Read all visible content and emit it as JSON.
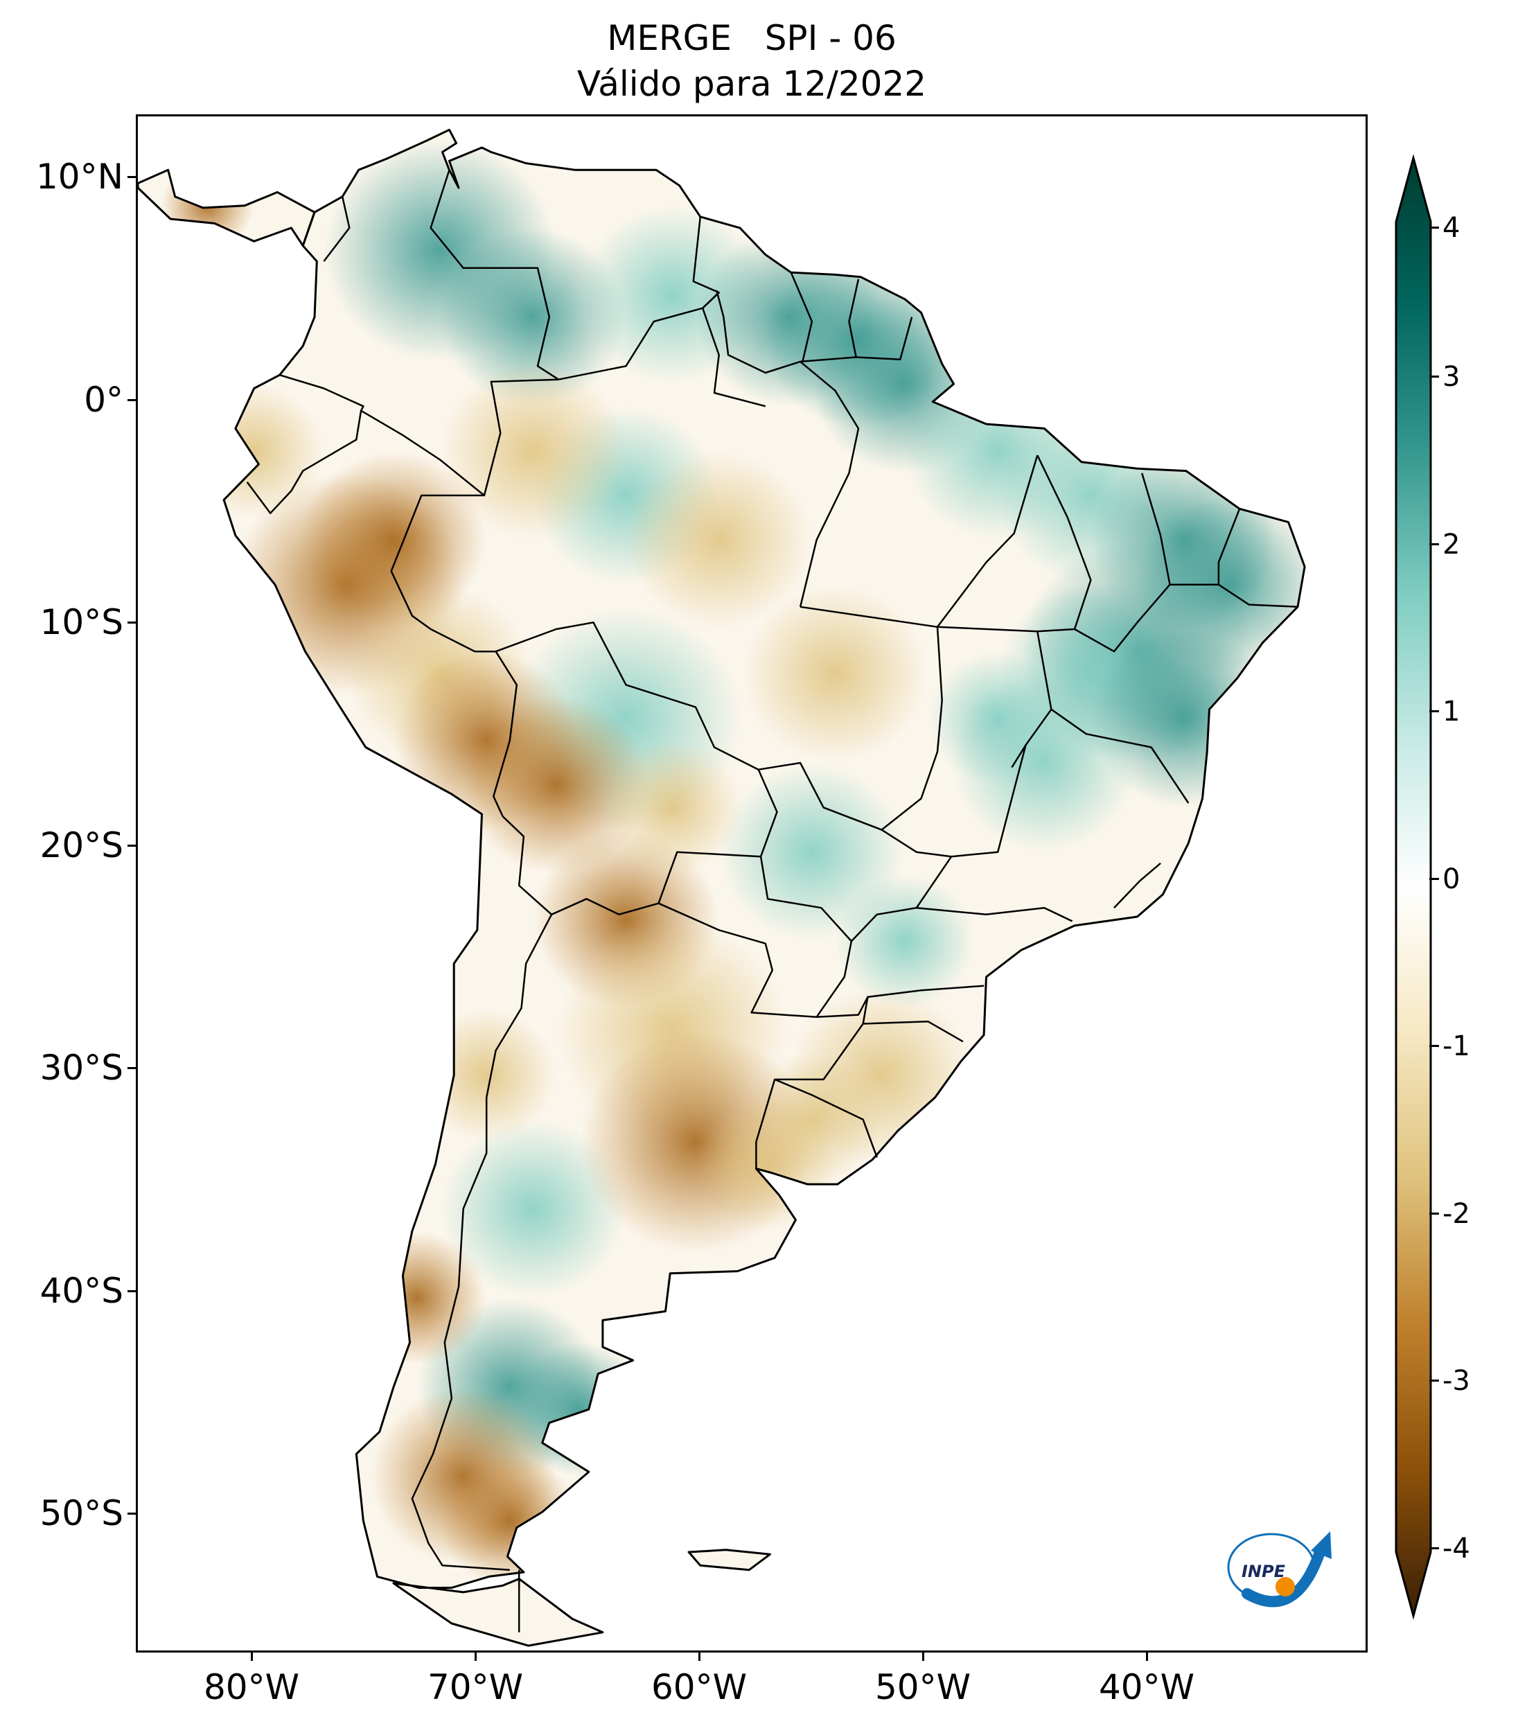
{
  "title": {
    "line1": "MERGE   SPI - 06",
    "line2": "Válido para 12/2022"
  },
  "map": {
    "extent_lon": [
      -85,
      -32
    ],
    "extent_lat": [
      -56,
      13
    ],
    "land_outline_color": "#000000",
    "ocean_color": "#ffffff",
    "latitude_labels": [
      "10°N",
      "0°",
      "10°S",
      "20°S",
      "30°S",
      "40°S",
      "50°S"
    ],
    "latitude_values": [
      10,
      0,
      -10,
      -20,
      -30,
      -40,
      -50
    ],
    "longitude_labels": [
      "80°W",
      "70°W",
      "60°W",
      "50°W",
      "40°W"
    ],
    "longitude_values": [
      -80,
      -70,
      -60,
      -50,
      -40
    ],
    "spi_regions": [
      {
        "region": "Northern Brazil / Guianas",
        "spi": 2.5
      },
      {
        "region": "Northeast Brazil",
        "spi": 2.0
      },
      {
        "region": "Central Brazil",
        "spi": 0.5
      },
      {
        "region": "Colombia / Venezuela",
        "spi": 1.5
      },
      {
        "region": "Peru",
        "spi": -2.0
      },
      {
        "region": "Bolivia highlands",
        "spi": -2.5
      },
      {
        "region": "Northern Argentina",
        "spi": -2.0
      },
      {
        "region": "Central Argentina",
        "spi": -2.0
      },
      {
        "region": "Southern Brazil / Uruguay",
        "spi": -1.5
      },
      {
        "region": "Southern Patagonia",
        "spi": -2.5
      },
      {
        "region": "Northern Patagonia",
        "spi": 1.5
      }
    ]
  },
  "colorbar": {
    "ticks": [
      "4",
      "3",
      "2",
      "1",
      "0",
      "-1",
      "-2",
      "-3",
      "-4"
    ],
    "tick_values": [
      4,
      3,
      2,
      1,
      0,
      -1,
      -2,
      -3,
      -4
    ],
    "min": -4.4,
    "max": 4.4,
    "colors": [
      "#3a2006",
      "#8c510a",
      "#bf812d",
      "#dfc27d",
      "#f6e8c3",
      "#ffffff",
      "#c7eae5",
      "#80cdc1",
      "#35978f",
      "#01665e",
      "#003c30"
    ]
  },
  "logo": {
    "text": "INPE",
    "brand_blue": "#1170b8",
    "brand_orange": "#f28c00"
  }
}
